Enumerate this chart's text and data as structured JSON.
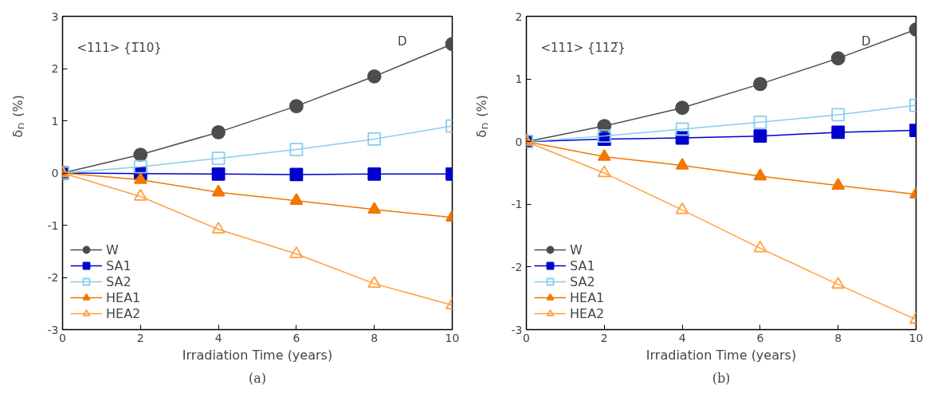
{
  "chart_data": [
    {
      "type": "line",
      "xlabel": "Irradiation Time (years)",
      "ylabel": "δ$_{D}$ (%)",
      "annotations": [
        "<111> {1̅10}",
        "D",
        "(a)"
      ],
      "x": [
        0,
        2,
        4,
        6,
        8,
        10
      ],
      "xlim": [
        0,
        10
      ],
      "xticks": [
        0,
        2,
        4,
        6,
        8,
        10
      ],
      "ylim": [
        -3,
        3
      ],
      "yticks": [
        -3,
        -2,
        -1,
        0,
        1,
        2,
        3
      ],
      "grid": false,
      "legend": "bottom left",
      "series": [
        {
          "name": "W",
          "color": "#4d4d4d",
          "marker": "circle",
          "values": [
            0,
            0.35,
            0.78,
            1.28,
            1.85,
            2.47
          ]
        },
        {
          "name": "SA1",
          "color": "#0000cc",
          "marker": "square",
          "values": [
            0,
            -0.01,
            -0.02,
            -0.03,
            -0.02,
            -0.02
          ]
        },
        {
          "name": "SA2",
          "color": "#87ceeb",
          "marker": "square_open",
          "values": [
            0,
            0.12,
            0.28,
            0.45,
            0.65,
            0.9
          ]
        },
        {
          "name": "HEA1",
          "color": "#f07800",
          "marker": "triangle",
          "values": [
            0,
            -0.13,
            -0.37,
            -0.53,
            -0.7,
            -0.85
          ]
        },
        {
          "name": "HEA2",
          "color": "#ffa040",
          "marker": "triangle_open",
          "values": [
            0,
            -0.45,
            -1.08,
            -1.55,
            -2.12,
            -2.53
          ]
        }
      ]
    },
    {
      "type": "line",
      "xlabel": "Irradiation Time (years)",
      "ylabel": "δ$_{D}$ (%)",
      "annotations": [
        "<111> {112̅}",
        "D",
        "(b)"
      ],
      "x": [
        0,
        2,
        4,
        6,
        8,
        10
      ],
      "xlim": [
        0,
        10
      ],
      "xticks": [
        0,
        2,
        4,
        6,
        8,
        10
      ],
      "ylim": [
        -3,
        2
      ],
      "yticks": [
        -3,
        -2,
        -1,
        0,
        1,
        2
      ],
      "grid": false,
      "legend": "bottom left",
      "series": [
        {
          "name": "W",
          "color": "#4d4d4d",
          "marker": "circle",
          "values": [
            0,
            0.25,
            0.54,
            0.92,
            1.33,
            1.79
          ]
        },
        {
          "name": "SA1",
          "color": "#0000cc",
          "marker": "square",
          "values": [
            0,
            0.04,
            0.06,
            0.09,
            0.15,
            0.18
          ]
        },
        {
          "name": "SA2",
          "color": "#87ceeb",
          "marker": "square_open",
          "values": [
            0,
            0.09,
            0.2,
            0.31,
            0.43,
            0.58
          ]
        },
        {
          "name": "HEA1",
          "color": "#f07800",
          "marker": "triangle",
          "values": [
            0,
            -0.24,
            -0.38,
            -0.55,
            -0.7,
            -0.84
          ]
        },
        {
          "name": "HEA2",
          "color": "#ffa040",
          "marker": "triangle_open",
          "values": [
            0,
            -0.5,
            -1.09,
            -1.7,
            -2.28,
            -2.84
          ]
        }
      ]
    }
  ]
}
